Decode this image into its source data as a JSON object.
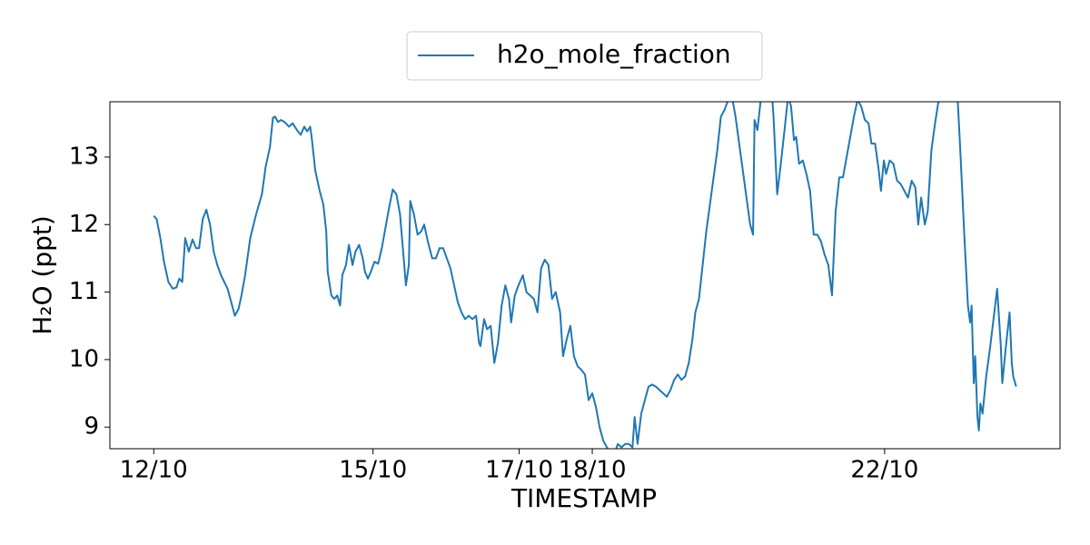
{
  "chart_data": {
    "type": "line",
    "x_label": "TIMESTAMP",
    "y_label": "H₂O (ppt)",
    "xlim": [
      11.4,
      24.4
    ],
    "ylim": [
      8.68,
      13.82
    ],
    "xticks": [
      {
        "value": 12,
        "label": "12/10"
      },
      {
        "value": 15,
        "label": "15/10"
      },
      {
        "value": 17,
        "label": "17/10"
      },
      {
        "value": 18,
        "label": "18/10"
      },
      {
        "value": 22,
        "label": "22/10"
      }
    ],
    "yticks": [
      9,
      10,
      11,
      12,
      13
    ],
    "legend": "upper center",
    "x": [
      12.0,
      12.04,
      12.09,
      12.14,
      12.2,
      12.26,
      12.31,
      12.35,
      12.39,
      12.43,
      12.48,
      12.53,
      12.58,
      12.62,
      12.67,
      12.72,
      12.77,
      12.82,
      12.87,
      12.92,
      13.01,
      13.06,
      13.11,
      13.16,
      13.2,
      13.25,
      13.32,
      13.4,
      13.48,
      13.53,
      13.59,
      13.63,
      13.66,
      13.7,
      13.74,
      13.79,
      13.85,
      13.9,
      13.96,
      14.01,
      14.06,
      14.1,
      14.14,
      14.16,
      14.21,
      14.27,
      14.32,
      14.36,
      14.38,
      14.43,
      14.47,
      14.51,
      14.55,
      14.58,
      14.63,
      14.67,
      14.72,
      14.76,
      14.81,
      14.86,
      14.89,
      14.93,
      14.97,
      15.02,
      15.07,
      15.12,
      15.17,
      15.22,
      15.27,
      15.32,
      15.37,
      15.42,
      15.45,
      15.49,
      15.51,
      15.56,
      15.61,
      15.66,
      15.7,
      15.75,
      15.81,
      15.86,
      15.91,
      15.96,
      16.01,
      16.06,
      16.11,
      16.16,
      16.21,
      16.26,
      16.31,
      16.36,
      16.41,
      16.45,
      16.47,
      16.52,
      16.56,
      16.61,
      16.66,
      16.71,
      16.76,
      16.81,
      16.86,
      16.89,
      16.94,
      16.99,
      17.05,
      17.1,
      17.15,
      17.2,
      17.25,
      17.3,
      17.35,
      17.4,
      17.45,
      17.5,
      17.56,
      17.6,
      17.65,
      17.7,
      17.75,
      17.8,
      17.85,
      17.9,
      17.95,
      18.0,
      18.05,
      18.1,
      18.15,
      18.2,
      18.25,
      18.3,
      18.35,
      18.4,
      18.45,
      18.5,
      18.55,
      18.58,
      18.62,
      18.67,
      18.72,
      18.77,
      18.82,
      18.87,
      18.92,
      18.97,
      19.02,
      19.07,
      19.12,
      19.17,
      19.22,
      19.27,
      19.32,
      19.37,
      19.41,
      19.46,
      19.51,
      19.56,
      19.61,
      19.66,
      19.71,
      19.76,
      19.81,
      19.86,
      19.91,
      19.96,
      20.01,
      20.06,
      20.11,
      20.16,
      20.2,
      20.22,
      20.26,
      20.31,
      20.36,
      20.41,
      20.46,
      20.48,
      20.53,
      20.58,
      20.63,
      20.68,
      20.72,
      20.76,
      20.79,
      20.83,
      20.88,
      20.93,
      20.98,
      21.03,
      21.08,
      21.13,
      21.18,
      21.23,
      21.28,
      21.33,
      21.38,
      21.43,
      21.48,
      21.53,
      21.58,
      21.63,
      21.68,
      21.73,
      21.78,
      21.82,
      21.87,
      21.92,
      21.95,
      21.99,
      22.02,
      22.07,
      22.12,
      22.17,
      22.22,
      22.27,
      22.32,
      22.37,
      22.42,
      22.46,
      22.5,
      22.55,
      22.59,
      22.64,
      22.69,
      22.74,
      22.79,
      22.84,
      22.89,
      22.94,
      23.0,
      23.04,
      23.09,
      23.14,
      23.17,
      23.19,
      23.22,
      23.24,
      23.27,
      23.29,
      23.31,
      23.34,
      23.39,
      23.44,
      23.49,
      23.54,
      23.59,
      23.61,
      23.66,
      23.71,
      23.74,
      23.76,
      23.8
    ],
    "series": [
      {
        "name": "h2o_mole_fraction",
        "color": "#1f77b4",
        "values": [
          12.13,
          12.08,
          11.8,
          11.45,
          11.15,
          11.05,
          11.07,
          11.2,
          11.15,
          11.8,
          11.6,
          11.78,
          11.65,
          11.65,
          12.08,
          12.22,
          12.0,
          11.6,
          11.4,
          11.25,
          11.05,
          10.85,
          10.65,
          10.75,
          10.95,
          11.25,
          11.8,
          12.15,
          12.45,
          12.85,
          13.15,
          13.58,
          13.6,
          13.52,
          13.55,
          13.52,
          13.45,
          13.5,
          13.4,
          13.33,
          13.45,
          13.38,
          13.45,
          13.3,
          12.8,
          12.5,
          12.3,
          11.9,
          11.3,
          10.95,
          10.9,
          10.95,
          10.8,
          11.25,
          11.4,
          11.7,
          11.4,
          11.6,
          11.7,
          11.5,
          11.3,
          11.2,
          11.3,
          11.45,
          11.42,
          11.65,
          11.95,
          12.25,
          12.52,
          12.45,
          12.15,
          11.5,
          11.1,
          11.4,
          12.35,
          12.15,
          11.85,
          11.9,
          12.0,
          11.75,
          11.5,
          11.5,
          11.65,
          11.65,
          11.5,
          11.35,
          11.1,
          10.85,
          10.7,
          10.6,
          10.65,
          10.6,
          10.65,
          10.25,
          10.2,
          10.6,
          10.45,
          10.5,
          9.95,
          10.25,
          10.8,
          11.1,
          10.9,
          10.55,
          10.95,
          11.1,
          11.25,
          11.0,
          10.95,
          10.9,
          10.7,
          11.35,
          11.48,
          11.4,
          10.9,
          11.0,
          10.7,
          10.05,
          10.3,
          10.5,
          10.05,
          9.9,
          9.85,
          9.78,
          9.4,
          9.5,
          9.3,
          9.0,
          8.8,
          8.7,
          8.6,
          8.6,
          8.75,
          8.7,
          8.75,
          8.75,
          8.7,
          9.15,
          8.75,
          9.2,
          9.4,
          9.6,
          9.63,
          9.6,
          9.55,
          9.5,
          9.45,
          9.55,
          9.7,
          9.78,
          9.7,
          9.75,
          9.95,
          10.3,
          10.7,
          10.9,
          11.4,
          11.9,
          12.3,
          12.7,
          13.1,
          13.6,
          13.7,
          13.85,
          13.9,
          13.6,
          13.2,
          12.8,
          12.4,
          12.0,
          11.85,
          13.55,
          13.4,
          13.9,
          13.95,
          13.95,
          13.9,
          13.6,
          12.45,
          12.9,
          13.4,
          13.9,
          13.75,
          13.25,
          13.3,
          12.9,
          12.95,
          12.75,
          12.5,
          11.85,
          11.85,
          11.75,
          11.55,
          11.4,
          10.95,
          12.2,
          12.7,
          12.7,
          13.0,
          13.3,
          13.6,
          13.85,
          13.75,
          13.55,
          13.5,
          13.2,
          13.2,
          12.8,
          12.5,
          12.95,
          12.75,
          12.95,
          12.9,
          12.65,
          12.6,
          12.5,
          12.4,
          12.65,
          12.55,
          12.0,
          12.4,
          12.0,
          12.2,
          13.1,
          13.5,
          13.85,
          13.9,
          13.9,
          13.95,
          13.95,
          13.85,
          13.0,
          11.85,
          10.8,
          10.55,
          10.8,
          9.65,
          10.05,
          9.15,
          8.95,
          9.35,
          9.2,
          9.75,
          10.15,
          10.6,
          11.05,
          10.2,
          9.65,
          10.2,
          10.7,
          9.95,
          9.75,
          9.6
        ]
      }
    ]
  }
}
